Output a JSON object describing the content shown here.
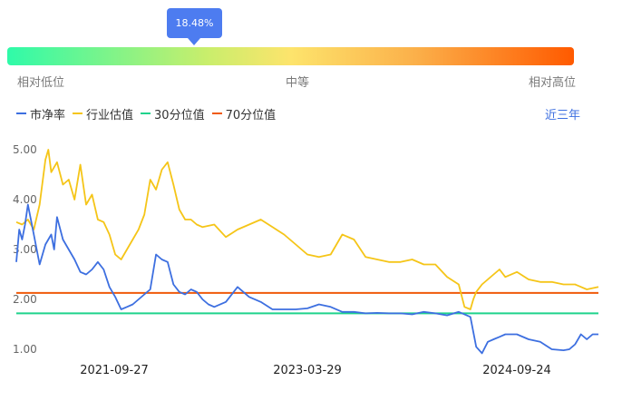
{
  "percentile": {
    "value_label": "18.48%",
    "value": 0.1848,
    "low_label": "相对低位",
    "mid_label": "中等",
    "high_label": "相对高位"
  },
  "period_label": "近三年",
  "colors": {
    "pb": "#3d6fe0",
    "industry": "#f5c518",
    "p30": "#1fd38c",
    "p70": "#f05a0a"
  },
  "chart_data": {
    "type": "line",
    "x_tick_labels": [
      "2021-09-27",
      "2023-03-29",
      "2024-09-24"
    ],
    "y_tick_labels": [
      "1.00",
      "2.00",
      "3.00",
      "4.00",
      "5.00"
    ],
    "ylim": [
      0.8,
      5.2
    ],
    "grid": false,
    "legend_position": "top-left",
    "series": [
      {
        "name": "市净率",
        "color": "#3d6fe0",
        "x": [
          0,
          0.005,
          0.01,
          0.015,
          0.02,
          0.03,
          0.035,
          0.04,
          0.05,
          0.06,
          0.065,
          0.07,
          0.08,
          0.09,
          0.1,
          0.11,
          0.12,
          0.13,
          0.14,
          0.15,
          0.16,
          0.17,
          0.18,
          0.19,
          0.2,
          0.21,
          0.22,
          0.23,
          0.24,
          0.25,
          0.26,
          0.27,
          0.28,
          0.29,
          0.3,
          0.31,
          0.32,
          0.33,
          0.34,
          0.36,
          0.38,
          0.4,
          0.42,
          0.44,
          0.46,
          0.48,
          0.5,
          0.52,
          0.54,
          0.56,
          0.58,
          0.6,
          0.62,
          0.64,
          0.66,
          0.68,
          0.7,
          0.72,
          0.74,
          0.76,
          0.78,
          0.785,
          0.79,
          0.8,
          0.81,
          0.82,
          0.83,
          0.84,
          0.86,
          0.88,
          0.9,
          0.92,
          0.94,
          0.95,
          0.96,
          0.97,
          0.98,
          0.99,
          1.0
        ],
        "values": [
          2.75,
          3.4,
          3.2,
          3.5,
          3.9,
          3.3,
          3.0,
          2.7,
          3.1,
          3.3,
          3.0,
          3.65,
          3.2,
          3.0,
          2.8,
          2.55,
          2.5,
          2.6,
          2.75,
          2.6,
          2.25,
          2.05,
          1.8,
          1.85,
          1.9,
          2.0,
          2.1,
          2.2,
          2.9,
          2.8,
          2.75,
          2.3,
          2.15,
          2.1,
          2.2,
          2.15,
          2.0,
          1.9,
          1.85,
          1.95,
          2.25,
          2.05,
          1.95,
          1.8,
          1.8,
          1.8,
          1.82,
          1.9,
          1.85,
          1.75,
          1.75,
          1.72,
          1.73,
          1.72,
          1.72,
          1.7,
          1.75,
          1.72,
          1.68,
          1.75,
          1.65,
          1.35,
          1.05,
          0.92,
          1.15,
          1.2,
          1.25,
          1.3,
          1.3,
          1.2,
          1.15,
          1.0,
          0.98,
          1.0,
          1.1,
          1.3,
          1.2,
          1.3,
          1.3
        ]
      },
      {
        "name": "行业估值",
        "color": "#f5c518",
        "x": [
          0,
          0.01,
          0.02,
          0.03,
          0.04,
          0.05,
          0.055,
          0.06,
          0.07,
          0.08,
          0.09,
          0.1,
          0.11,
          0.12,
          0.13,
          0.14,
          0.15,
          0.16,
          0.17,
          0.18,
          0.19,
          0.2,
          0.21,
          0.22,
          0.23,
          0.24,
          0.25,
          0.26,
          0.27,
          0.28,
          0.29,
          0.3,
          0.31,
          0.32,
          0.34,
          0.36,
          0.38,
          0.4,
          0.42,
          0.44,
          0.46,
          0.48,
          0.5,
          0.52,
          0.54,
          0.56,
          0.58,
          0.6,
          0.62,
          0.64,
          0.66,
          0.68,
          0.7,
          0.72,
          0.74,
          0.76,
          0.77,
          0.78,
          0.785,
          0.79,
          0.8,
          0.81,
          0.82,
          0.83,
          0.84,
          0.86,
          0.88,
          0.9,
          0.92,
          0.94,
          0.96,
          0.98,
          1.0
        ],
        "values": [
          3.55,
          3.5,
          3.6,
          3.4,
          3.9,
          4.8,
          5.0,
          4.55,
          4.75,
          4.3,
          4.4,
          4.0,
          4.7,
          3.9,
          4.1,
          3.6,
          3.55,
          3.3,
          2.9,
          2.8,
          3.0,
          3.2,
          3.4,
          3.7,
          4.4,
          4.2,
          4.6,
          4.75,
          4.3,
          3.8,
          3.6,
          3.6,
          3.5,
          3.45,
          3.5,
          3.25,
          3.4,
          3.5,
          3.6,
          3.45,
          3.3,
          3.1,
          2.9,
          2.85,
          2.9,
          3.3,
          3.2,
          2.85,
          2.8,
          2.75,
          2.75,
          2.8,
          2.7,
          2.7,
          2.45,
          2.3,
          1.85,
          1.8,
          2.0,
          2.15,
          2.3,
          2.4,
          2.5,
          2.6,
          2.45,
          2.55,
          2.4,
          2.35,
          2.35,
          2.3,
          2.3,
          2.2,
          2.25
        ]
      },
      {
        "name": "30分位值",
        "color": "#1fd38c",
        "x": [
          0,
          1
        ],
        "values": [
          1.72,
          1.72
        ]
      },
      {
        "name": "70分位值",
        "color": "#f05a0a",
        "x": [
          0,
          1
        ],
        "values": [
          2.13,
          2.13
        ]
      }
    ]
  }
}
